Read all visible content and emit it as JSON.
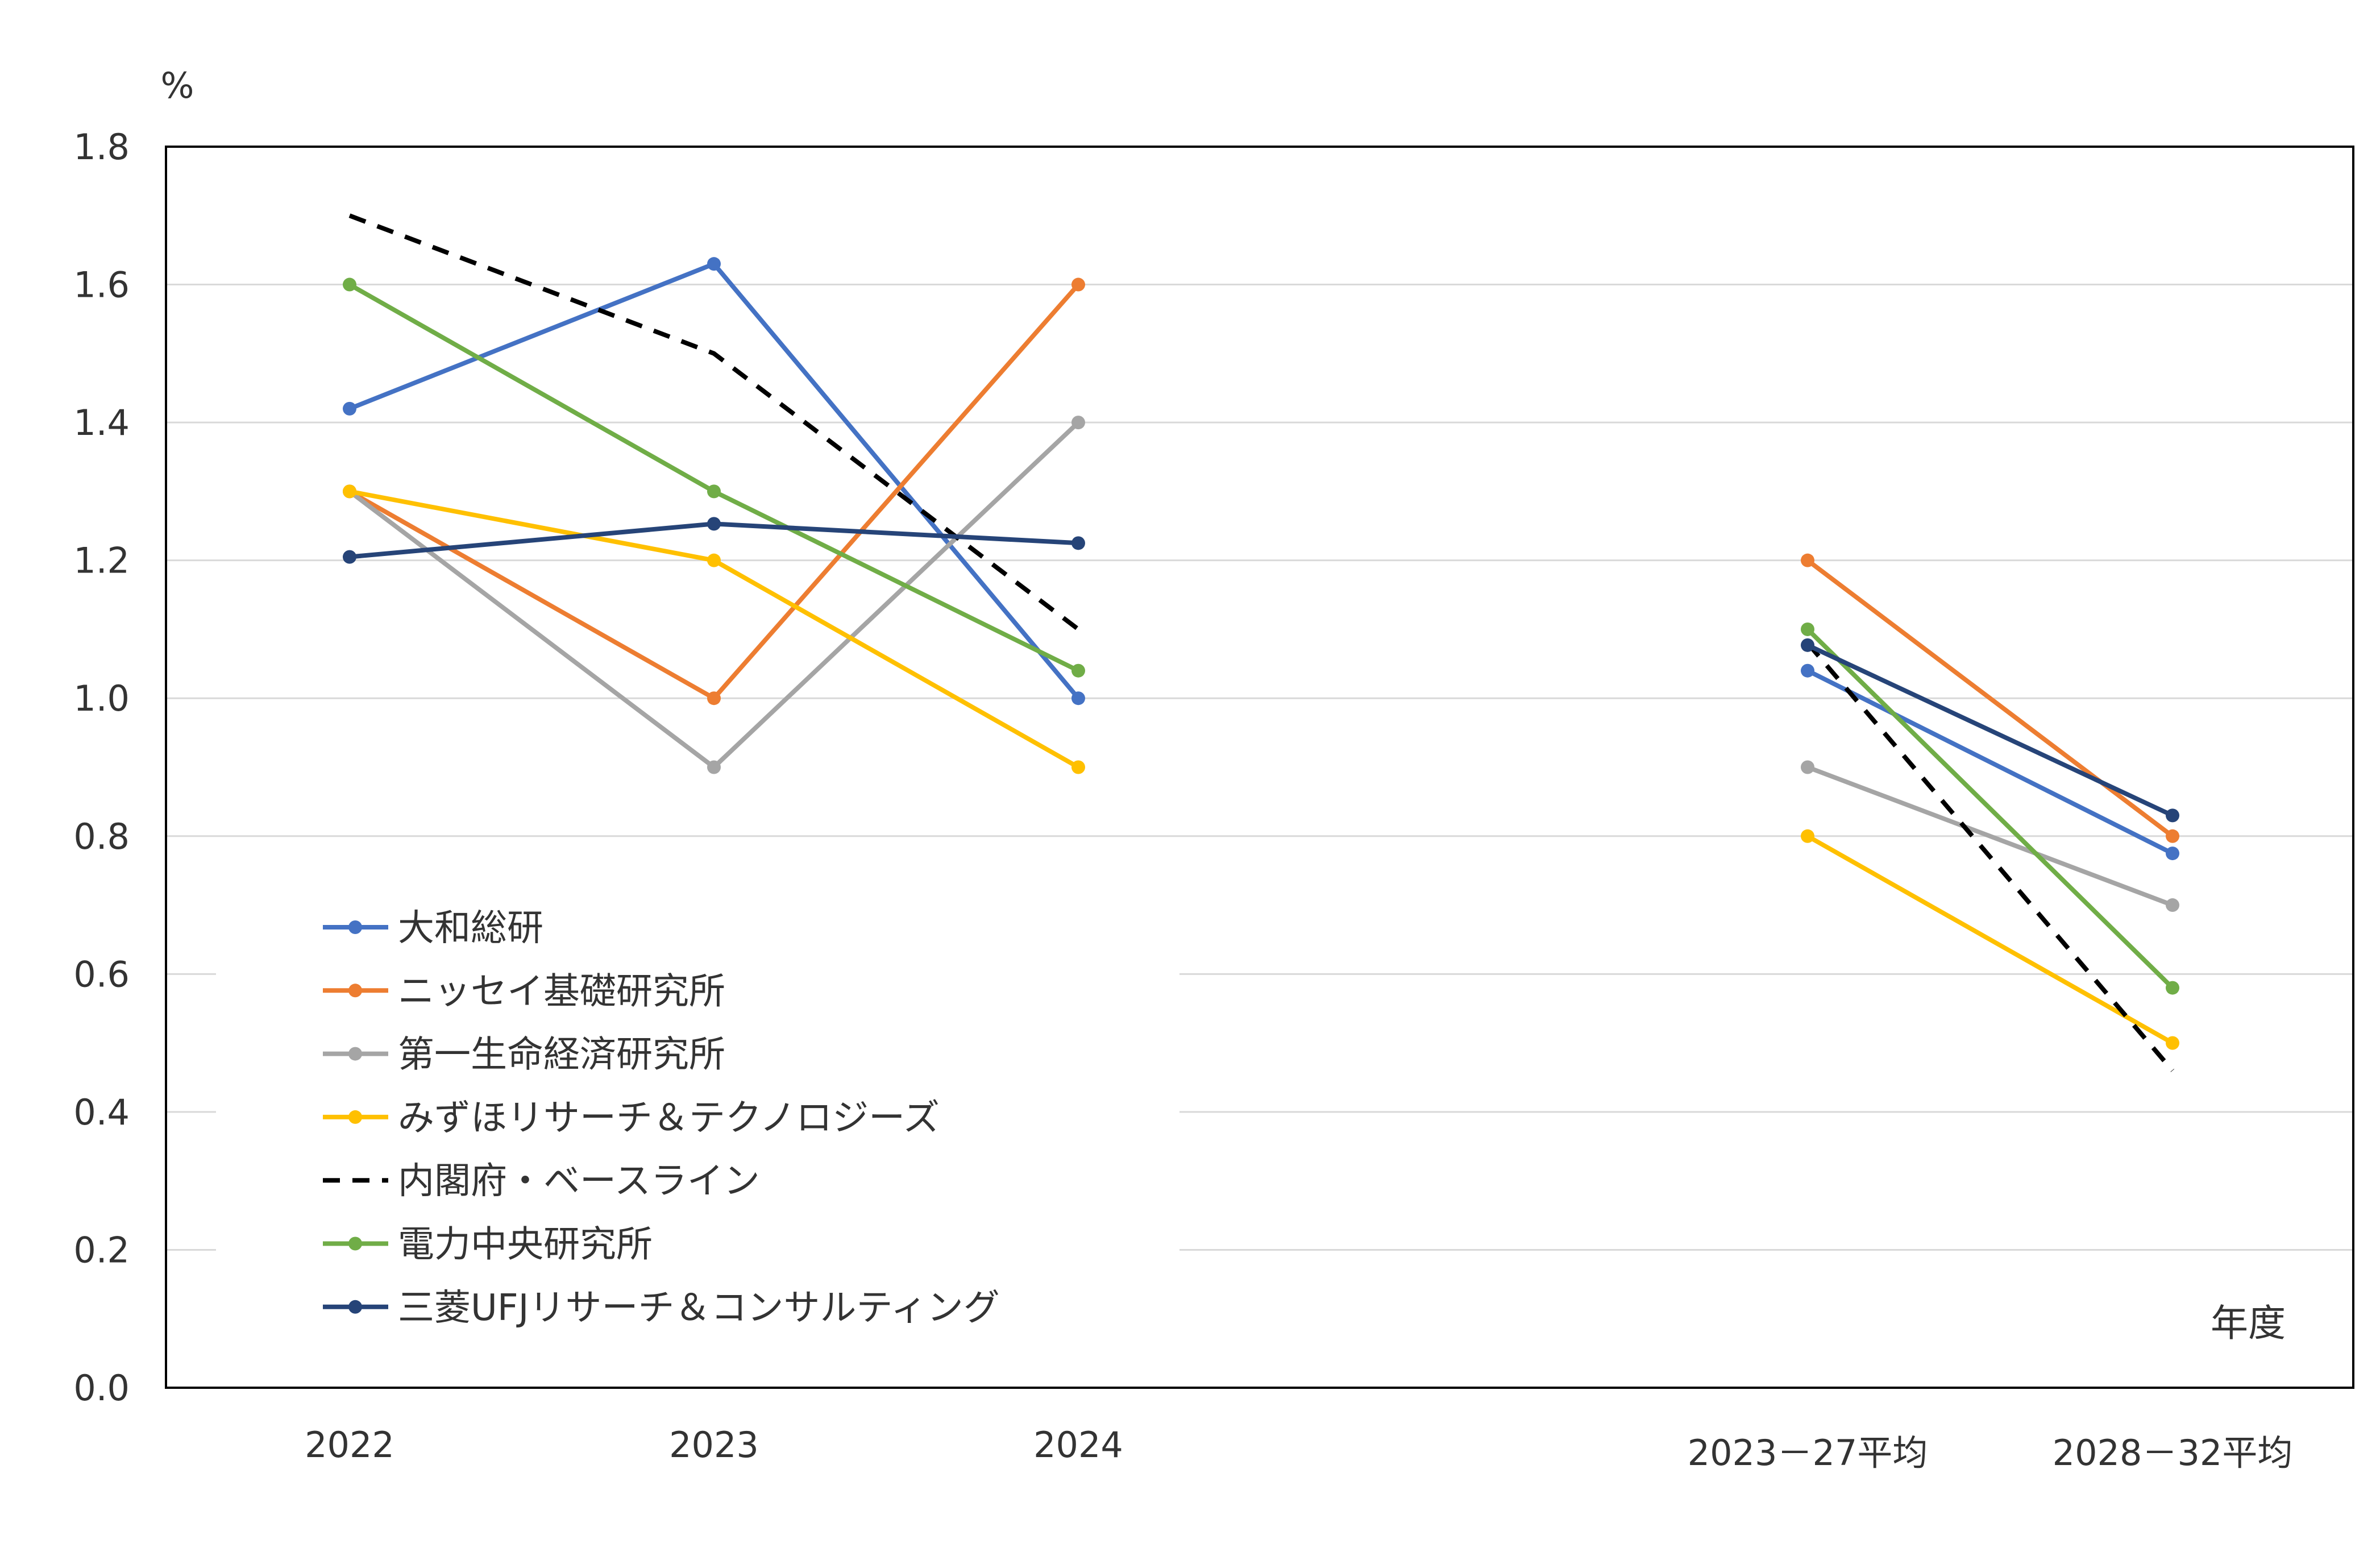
{
  "chart_data": {
    "type": "line",
    "ylabel": "%",
    "xlabel": "年度",
    "ylim": [
      0.0,
      1.8
    ],
    "yticks": [
      "0.0",
      "0.2",
      "0.4",
      "0.6",
      "0.8",
      "1.0",
      "1.2",
      "1.4",
      "1.6",
      "1.8"
    ],
    "categories": [
      "2022",
      "2023",
      "2024",
      "2023－27平均",
      "2028－32平均"
    ],
    "grid": "horizontal",
    "legend_position": "bottom-left",
    "series": [
      {
        "name": "大和総研",
        "color": "#4472C4",
        "style": "solid",
        "values": [
          1.42,
          1.63,
          1.0,
          1.04,
          0.775
        ]
      },
      {
        "name": "ニッセイ基礎研究所",
        "color": "#ED7D31",
        "style": "solid",
        "values": [
          1.3,
          1.0,
          1.6,
          1.2,
          0.8
        ]
      },
      {
        "name": "第一生命経済研究所",
        "color": "#A5A5A5",
        "style": "solid",
        "values": [
          1.3,
          0.9,
          1.4,
          0.9,
          0.7
        ]
      },
      {
        "name": "みずほリサーチ＆テクノロジーズ",
        "color": "#FFC000",
        "style": "solid",
        "values": [
          1.3,
          1.2,
          0.9,
          0.8,
          0.5
        ]
      },
      {
        "name": "内閣府・ベースライン",
        "color": "#000000",
        "style": "dashed",
        "values": [
          1.7,
          1.5,
          1.1,
          1.08,
          0.46
        ]
      },
      {
        "name": "電力中央研究所",
        "color": "#70AD47",
        "style": "solid",
        "values": [
          1.6,
          1.3,
          1.04,
          1.1,
          0.58
        ]
      },
      {
        "name": "三菱UFJリサーチ＆コンサルティング",
        "color": "#264478",
        "style": "solid",
        "values": [
          1.205,
          1.253,
          1.225,
          1.077,
          0.83
        ]
      }
    ]
  }
}
